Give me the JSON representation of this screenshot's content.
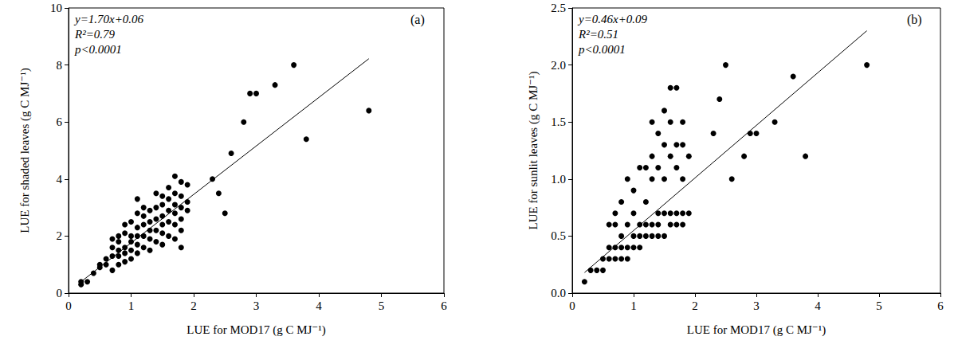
{
  "chart_data": [
    {
      "type": "scatter",
      "title": "(a)",
      "annotations": [
        "y=1.70x+0.06",
        "R²=0.79",
        "p<0.0001"
      ],
      "x_label": "LUE for MOD17 (g C MJ⁻¹)",
      "y_label": "LUE for shaded leaves (g C MJ⁻¹)",
      "xlim": [
        0,
        6
      ],
      "xticks": [
        0,
        1,
        2,
        3,
        4,
        5,
        6
      ],
      "ylim": [
        0,
        10
      ],
      "yticks": [
        0,
        2,
        4,
        6,
        8,
        10
      ],
      "grid": false,
      "series": [
        {
          "type": "scatter",
          "color": "#000000",
          "marker": "circle",
          "x": [
            0.2,
            0.2,
            0.3,
            0.4,
            0.5,
            0.5,
            0.6,
            0.6,
            0.7,
            0.7,
            0.7,
            0.7,
            0.8,
            0.8,
            0.8,
            0.8,
            0.8,
            0.9,
            0.9,
            0.9,
            0.9,
            0.9,
            1.0,
            1.0,
            1.0,
            1.0,
            1.0,
            1.1,
            1.1,
            1.1,
            1.1,
            1.1,
            1.1,
            1.2,
            1.2,
            1.2,
            1.2,
            1.2,
            1.3,
            1.3,
            1.3,
            1.3,
            1.3,
            1.4,
            1.4,
            1.4,
            1.4,
            1.4,
            1.5,
            1.5,
            1.5,
            1.5,
            1.5,
            1.5,
            1.6,
            1.6,
            1.6,
            1.6,
            1.6,
            1.7,
            1.7,
            1.7,
            1.7,
            1.7,
            1.7,
            1.8,
            1.8,
            1.8,
            1.8,
            1.8,
            1.8,
            1.9,
            1.9,
            1.9,
            2.3,
            2.4,
            2.5,
            2.6,
            2.8,
            2.9,
            3.0,
            3.3,
            3.6,
            3.8,
            4.8
          ],
          "values": [
            0.3,
            0.4,
            0.4,
            0.7,
            0.9,
            1.0,
            1.0,
            1.2,
            0.8,
            1.3,
            1.6,
            1.9,
            1.0,
            1.3,
            1.5,
            1.8,
            2.0,
            1.1,
            1.4,
            1.6,
            2.1,
            2.4,
            1.2,
            1.5,
            1.8,
            2.0,
            2.5,
            1.4,
            1.7,
            2.0,
            2.3,
            2.8,
            3.3,
            1.6,
            2.0,
            2.4,
            2.7,
            3.0,
            1.5,
            1.9,
            2.2,
            2.5,
            2.9,
            1.8,
            2.2,
            2.6,
            3.0,
            3.5,
            1.7,
            2.1,
            2.4,
            2.7,
            3.1,
            3.4,
            2.0,
            2.5,
            2.9,
            3.3,
            3.7,
            1.9,
            2.4,
            2.8,
            3.1,
            3.5,
            4.1,
            1.6,
            2.2,
            2.6,
            3.0,
            3.4,
            3.9,
            2.9,
            3.2,
            3.8,
            4.0,
            3.5,
            2.8,
            4.9,
            6.0,
            7.0,
            7.0,
            7.3,
            8.0,
            5.4,
            6.4
          ]
        },
        {
          "type": "line",
          "color": "#000000",
          "line_style": "solid",
          "x": [
            0.2,
            4.8
          ],
          "values": [
            0.4,
            8.22
          ]
        }
      ]
    },
    {
      "type": "scatter",
      "title": "(b)",
      "annotations": [
        "y=0.46x+0.09",
        "R²=0.51",
        "p<0.0001"
      ],
      "x_label": "LUE for MOD17 (g C MJ⁻¹)",
      "y_label": "LUE for sunlit leaves (g C MJ⁻¹)",
      "xlim": [
        0,
        6
      ],
      "xticks": [
        0,
        1,
        2,
        3,
        4,
        5,
        6
      ],
      "ylim": [
        0,
        2.5
      ],
      "yticks": [
        {
          "value": 0,
          "label": "0.0"
        },
        0.5,
        {
          "value": 1,
          "label": "1.0"
        },
        1.5,
        {
          "value": 2,
          "label": "2.0"
        },
        2.5
      ],
      "grid": false,
      "series": [
        {
          "type": "scatter",
          "color": "#000000",
          "marker": "circle",
          "x": [
            0.2,
            0.3,
            0.4,
            0.5,
            0.5,
            0.6,
            0.6,
            0.6,
            0.7,
            0.7,
            0.7,
            0.7,
            0.8,
            0.8,
            0.8,
            0.8,
            0.9,
            0.9,
            0.9,
            0.9,
            1.0,
            1.0,
            1.0,
            1.0,
            1.1,
            1.1,
            1.1,
            1.1,
            1.2,
            1.2,
            1.2,
            1.2,
            1.3,
            1.3,
            1.3,
            1.3,
            1.3,
            1.4,
            1.4,
            1.4,
            1.4,
            1.4,
            1.5,
            1.5,
            1.5,
            1.5,
            1.5,
            1.6,
            1.6,
            1.6,
            1.6,
            1.6,
            1.7,
            1.7,
            1.7,
            1.7,
            1.7,
            1.8,
            1.8,
            1.8,
            1.8,
            1.8,
            1.9,
            1.9,
            2.3,
            2.4,
            2.5,
            2.6,
            2.8,
            2.9,
            3.0,
            3.3,
            3.6,
            3.8,
            4.8
          ],
          "values": [
            0.1,
            0.2,
            0.2,
            0.2,
            0.3,
            0.3,
            0.4,
            0.6,
            0.3,
            0.4,
            0.6,
            0.7,
            0.3,
            0.4,
            0.5,
            0.8,
            0.3,
            0.4,
            0.6,
            1.0,
            0.4,
            0.5,
            0.7,
            0.9,
            0.4,
            0.5,
            0.6,
            1.1,
            0.5,
            0.6,
            0.8,
            1.1,
            0.5,
            0.6,
            1.0,
            1.2,
            1.5,
            0.5,
            0.6,
            0.7,
            1.1,
            1.4,
            0.5,
            0.7,
            1.0,
            1.3,
            1.6,
            0.6,
            0.7,
            1.2,
            1.5,
            1.8,
            0.6,
            0.7,
            1.1,
            1.3,
            1.8,
            0.6,
            0.7,
            1.0,
            1.3,
            1.5,
            0.7,
            1.2,
            1.4,
            1.7,
            2.0,
            1.0,
            1.2,
            1.4,
            1.4,
            1.5,
            1.9,
            1.2,
            2.0
          ]
        },
        {
          "type": "line",
          "color": "#000000",
          "line_style": "solid",
          "x": [
            0.2,
            4.8
          ],
          "values": [
            0.18,
            2.3
          ]
        }
      ]
    }
  ]
}
